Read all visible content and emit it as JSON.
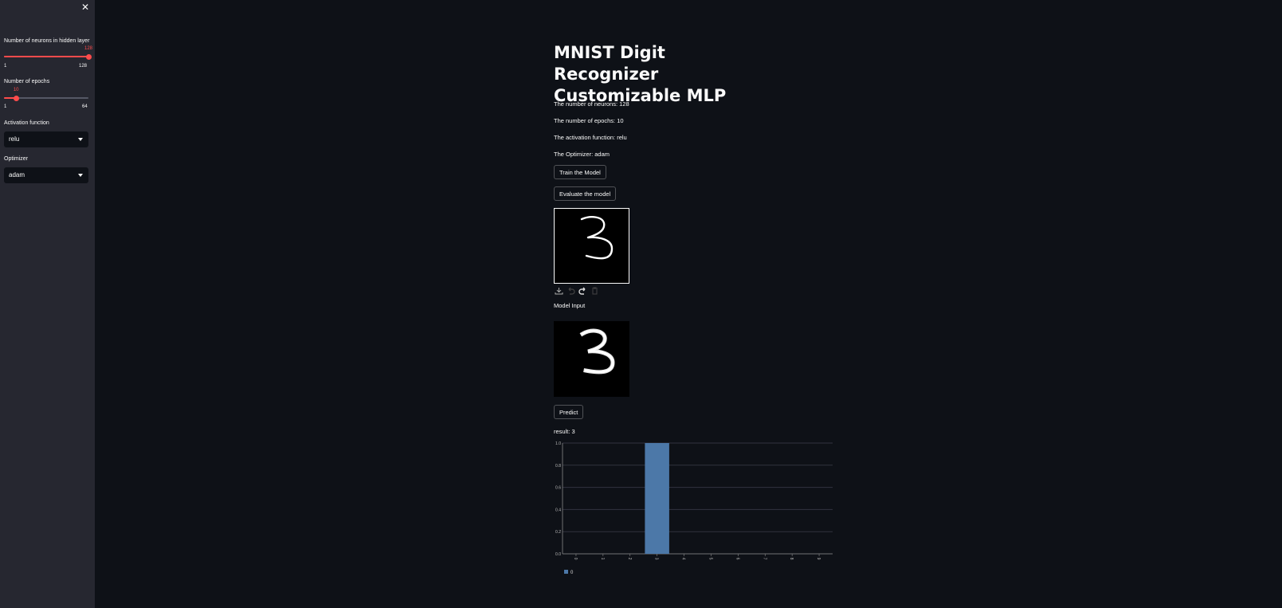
{
  "sidebar": {
    "close_label": "✕",
    "neurons_slider": {
      "label": "Number of neurons in hidden layer",
      "value": "128",
      "min": "1",
      "max": "128",
      "fraction": 1.0
    },
    "epochs_slider": {
      "label": "Number of epochs",
      "value": "10",
      "min": "1",
      "max": "64",
      "fraction": 0.143
    },
    "activation": {
      "label": "Activation function",
      "value": "relu"
    },
    "optimizer": {
      "label": "Optimizer",
      "value": "adam"
    }
  },
  "main": {
    "title_line1": "MNIST Digit Recognizer",
    "title_line2": "Customizable MLP",
    "neurons_text": "The number of neurons: 128",
    "epochs_text": "The number of epochs: 10",
    "activation_text": "The activation function: relu",
    "optimizer_text": "The Optimizer: adam",
    "train_button": "Train the Model",
    "evaluate_button": "Evaluate the model",
    "model_input_label": "Model Input",
    "predict_button": "Predict",
    "result_text": "result: 3"
  },
  "colors": {
    "accent": "#ff4b4b",
    "bar": "#4c78a8",
    "background": "#0e1117",
    "sidebar": "#262730"
  },
  "toolbar_icons": [
    "download-icon",
    "undo-icon",
    "redo-icon",
    "trash-icon"
  ],
  "chart_data": {
    "type": "bar",
    "categories": [
      "0",
      "1",
      "2",
      "3",
      "4",
      "5",
      "6",
      "7",
      "8",
      "9"
    ],
    "series": [
      {
        "name": "0",
        "values": [
          0,
          0,
          0,
          1.0,
          0,
          0,
          0,
          0,
          0,
          0
        ]
      }
    ],
    "ylim": [
      0,
      1.0
    ],
    "yticks": [
      "0.0",
      "0.2",
      "0.4",
      "0.6",
      "0.8",
      "1.0"
    ],
    "grid": true,
    "legend": "bottom-left"
  }
}
